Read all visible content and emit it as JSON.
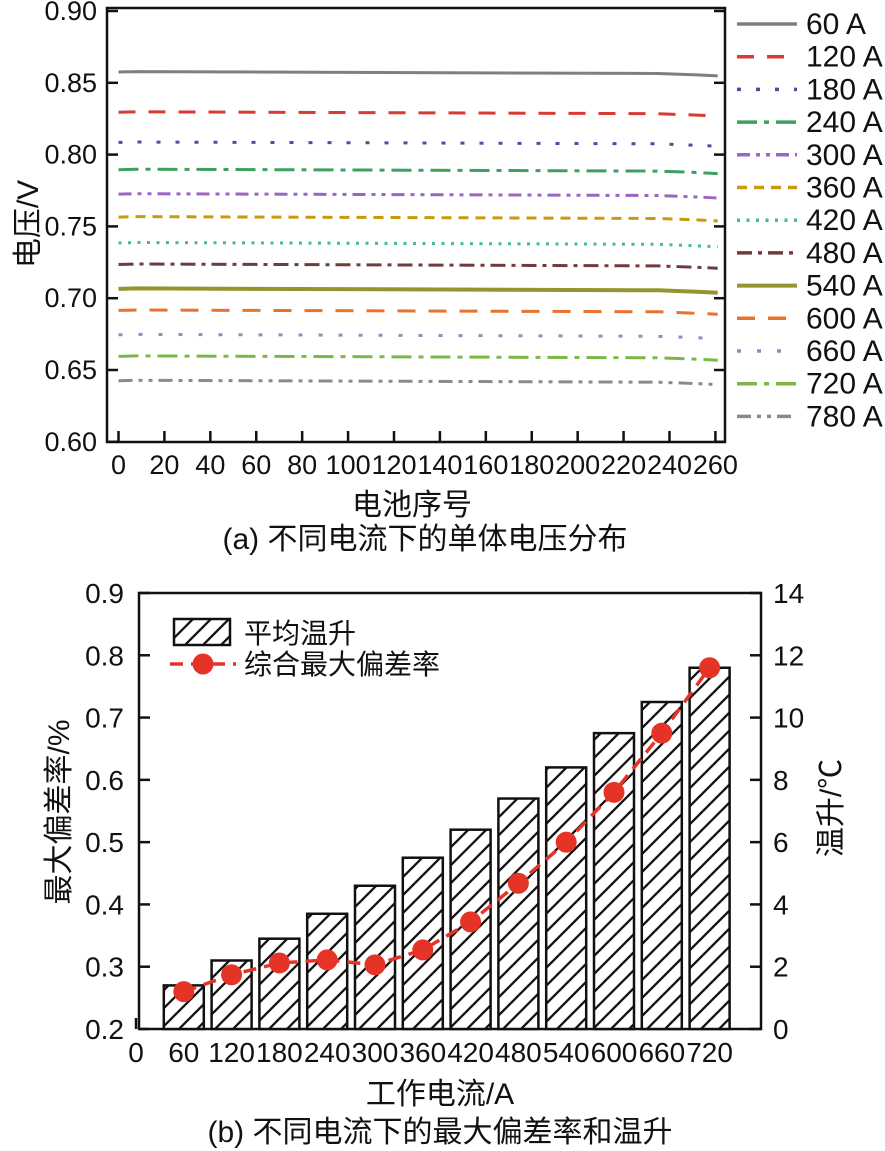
{
  "chart_data": [
    {
      "id": "a",
      "type": "line",
      "caption": "(a) 不同电流下的单体电压分布",
      "xlabel": "电池序号",
      "ylabel": "电压/V",
      "xlim": [
        0,
        264
      ],
      "ylim": [
        0.6,
        0.9
      ],
      "x_tick_values": [
        0,
        20,
        40,
        60,
        80,
        100,
        120,
        140,
        160,
        180,
        200,
        220,
        240,
        260
      ],
      "x_tick_labels": [
        "0",
        "20",
        "40",
        "60",
        "80",
        "100",
        "120",
        "140",
        "160",
        "180",
        "200",
        "220",
        "240",
        "260"
      ],
      "y_tick_values": [
        0.6,
        0.65,
        0.7,
        0.75,
        0.8,
        0.85,
        0.9
      ],
      "y_tick_labels": [
        "0.60",
        "0.65",
        "0.70",
        "0.75",
        "0.80",
        "0.85",
        "0.90"
      ],
      "grid": false,
      "legend_position": "right",
      "series": [
        {
          "name": "60 A",
          "color": "#7f7f7f",
          "dash": "solid",
          "width": 3,
          "value": 0.857
        },
        {
          "name": "120 A",
          "color": "#d93a33",
          "dash": "17 13",
          "width": 3,
          "value": 0.829
        },
        {
          "name": "180 A",
          "color": "#4d4da0",
          "dash": "4 15",
          "width": 3,
          "value": 0.808
        },
        {
          "name": "240 A",
          "color": "#3da05f",
          "dash": "20 7 5 7",
          "width": 3,
          "value": 0.789
        },
        {
          "name": "300 A",
          "color": "#9c64c4",
          "dash": "13 6 4 6 4 6",
          "width": 3,
          "value": 0.772
        },
        {
          "name": "360 A",
          "color": "#c99a0e",
          "dash": "10 7",
          "width": 3,
          "value": 0.756
        },
        {
          "name": "420 A",
          "color": "#41b9a1",
          "dash": "3 6.5",
          "width": 3,
          "value": 0.738
        },
        {
          "name": "480 A",
          "color": "#6f3c3c",
          "dash": "15 6 4 6",
          "width": 3,
          "value": 0.723
        },
        {
          "name": "540 A",
          "color": "#95952e",
          "dash": "solid",
          "width": 4,
          "value": 0.706
        },
        {
          "name": "600 A",
          "color": "#e8732d",
          "dash": "18 13",
          "width": 3,
          "value": 0.691
        },
        {
          "name": "660 A",
          "color": "#8393c9",
          "dash": "4 16",
          "width": 3,
          "value": 0.674
        },
        {
          "name": "720 A",
          "color": "#7ab947",
          "dash": "20 7 5 7",
          "width": 3,
          "value": 0.659
        },
        {
          "name": "780 A",
          "color": "#8b8b83",
          "dash": "14 6 4 6 4 6",
          "width": 3,
          "value": 0.642
        }
      ]
    },
    {
      "id": "b",
      "type": "bar",
      "caption": "(b) 不同电流下的最大偏差率和温升",
      "xlabel": "工作电流/A",
      "ylabel_left": "最大偏差率/%",
      "ylabel_right": "温升/℃",
      "categories": [
        60,
        120,
        180,
        240,
        300,
        360,
        420,
        480,
        540,
        600,
        660,
        720
      ],
      "x_tick_values": [
        0,
        60,
        120,
        180,
        240,
        300,
        360,
        420,
        480,
        540,
        600,
        660,
        720
      ],
      "x_tick_labels": [
        "0",
        "60",
        "120",
        "180",
        "240",
        "300",
        "360",
        "420",
        "480",
        "540",
        "600",
        "660",
        "720"
      ],
      "ylim_left": [
        0.2,
        0.9
      ],
      "ylim_right": [
        0,
        14
      ],
      "y_left_tick_values": [
        0.2,
        0.3,
        0.4,
        0.5,
        0.6,
        0.7,
        0.8,
        0.9
      ],
      "y_left_tick_labels": [
        "0.2",
        "0.3",
        "0.4",
        "0.5",
        "0.6",
        "0.7",
        "0.8",
        "0.9"
      ],
      "y_right_tick_values": [
        0,
        2,
        4,
        6,
        8,
        10,
        12,
        14
      ],
      "y_right_tick_labels": [
        "0",
        "2",
        "4",
        "6",
        "8",
        "10",
        "12",
        "14"
      ],
      "grid": false,
      "legend_position": "top-left-inside",
      "series": [
        {
          "name": "平均温升",
          "type": "bar",
          "axis": "right",
          "style": "hatched",
          "bar_fill": "#ffffff",
          "bar_stroke": "#111111",
          "values": [
            1.4,
            2.2,
            2.9,
            3.7,
            4.6,
            5.5,
            6.4,
            7.4,
            8.4,
            9.5,
            10.5,
            11.6
          ]
        },
        {
          "name": "综合最大偏差率",
          "type": "line",
          "axis": "left",
          "color": "#e63328",
          "dash": "13 8",
          "marker": "circle",
          "values": [
            0.26,
            0.287,
            0.306,
            0.311,
            0.303,
            0.327,
            0.372,
            0.434,
            0.5,
            0.58,
            0.675,
            0.78
          ]
        }
      ]
    }
  ]
}
